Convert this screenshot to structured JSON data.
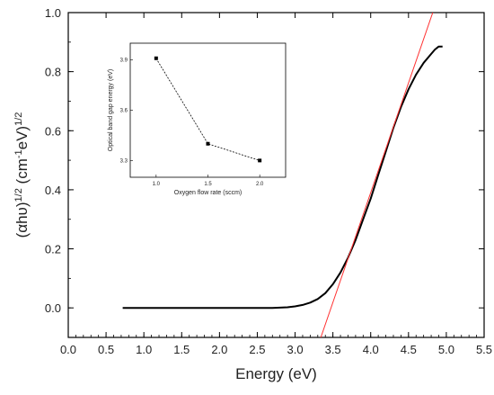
{
  "chart_data": [
    {
      "type": "line",
      "title": "",
      "xlabel": "Energy (eV)",
      "ylabel_parts": [
        "(",
        "αhυ",
        ")",
        "1/2",
        " (cm",
        "-1",
        "eV)",
        "1/2"
      ],
      "xlim": [
        0.0,
        5.5
      ],
      "ylim": [
        -0.1,
        1.0
      ],
      "x_ticks": [
        "0.0",
        "0.5",
        "1.0",
        "1.5",
        "2.0",
        "2.5",
        "3.0",
        "3.5",
        "4.0",
        "4.5",
        "5.0",
        "5.5"
      ],
      "y_ticks": [
        "0.0",
        "0.2",
        "0.4",
        "0.6",
        "0.8",
        "1.0"
      ],
      "grid": false,
      "series": [
        {
          "color": "#000000",
          "x": [
            0.72,
            1.0,
            1.5,
            2.0,
            2.5,
            2.7,
            2.9,
            3.0,
            3.1,
            3.2,
            3.3,
            3.4,
            3.5,
            3.6,
            3.7,
            3.8,
            3.9,
            4.0,
            4.1,
            4.2,
            4.3,
            4.4,
            4.5,
            4.6,
            4.7,
            4.8,
            4.85,
            4.9,
            4.95
          ],
          "values": [
            0.0,
            0.0,
            0.0,
            0.0,
            0.0,
            0.0,
            0.002,
            0.005,
            0.01,
            0.018,
            0.03,
            0.05,
            0.08,
            0.12,
            0.17,
            0.23,
            0.3,
            0.37,
            0.45,
            0.53,
            0.61,
            0.68,
            0.74,
            0.79,
            0.83,
            0.86,
            0.875,
            0.885,
            0.885
          ]
        },
        {
          "color": "#ff3030",
          "x": [
            3.34,
            4.82
          ],
          "values": [
            -0.1,
            1.0
          ]
        }
      ]
    },
    {
      "type": "line",
      "title": "",
      "xlabel": "Oxygen flow rate (sccm)",
      "ylabel": "Optical band gap energy (eV)",
      "xlim": [
        0.75,
        2.25
      ],
      "ylim": [
        3.2,
        4.0
      ],
      "x_ticks": [
        "1.0",
        "1.5",
        "2.0"
      ],
      "y_ticks": [
        "3.3",
        "3.6",
        "3.9"
      ],
      "series": [
        {
          "color": "#000000",
          "x": [
            1.0,
            1.5,
            2.0
          ],
          "values": [
            3.91,
            3.4,
            3.3
          ]
        }
      ]
    }
  ]
}
